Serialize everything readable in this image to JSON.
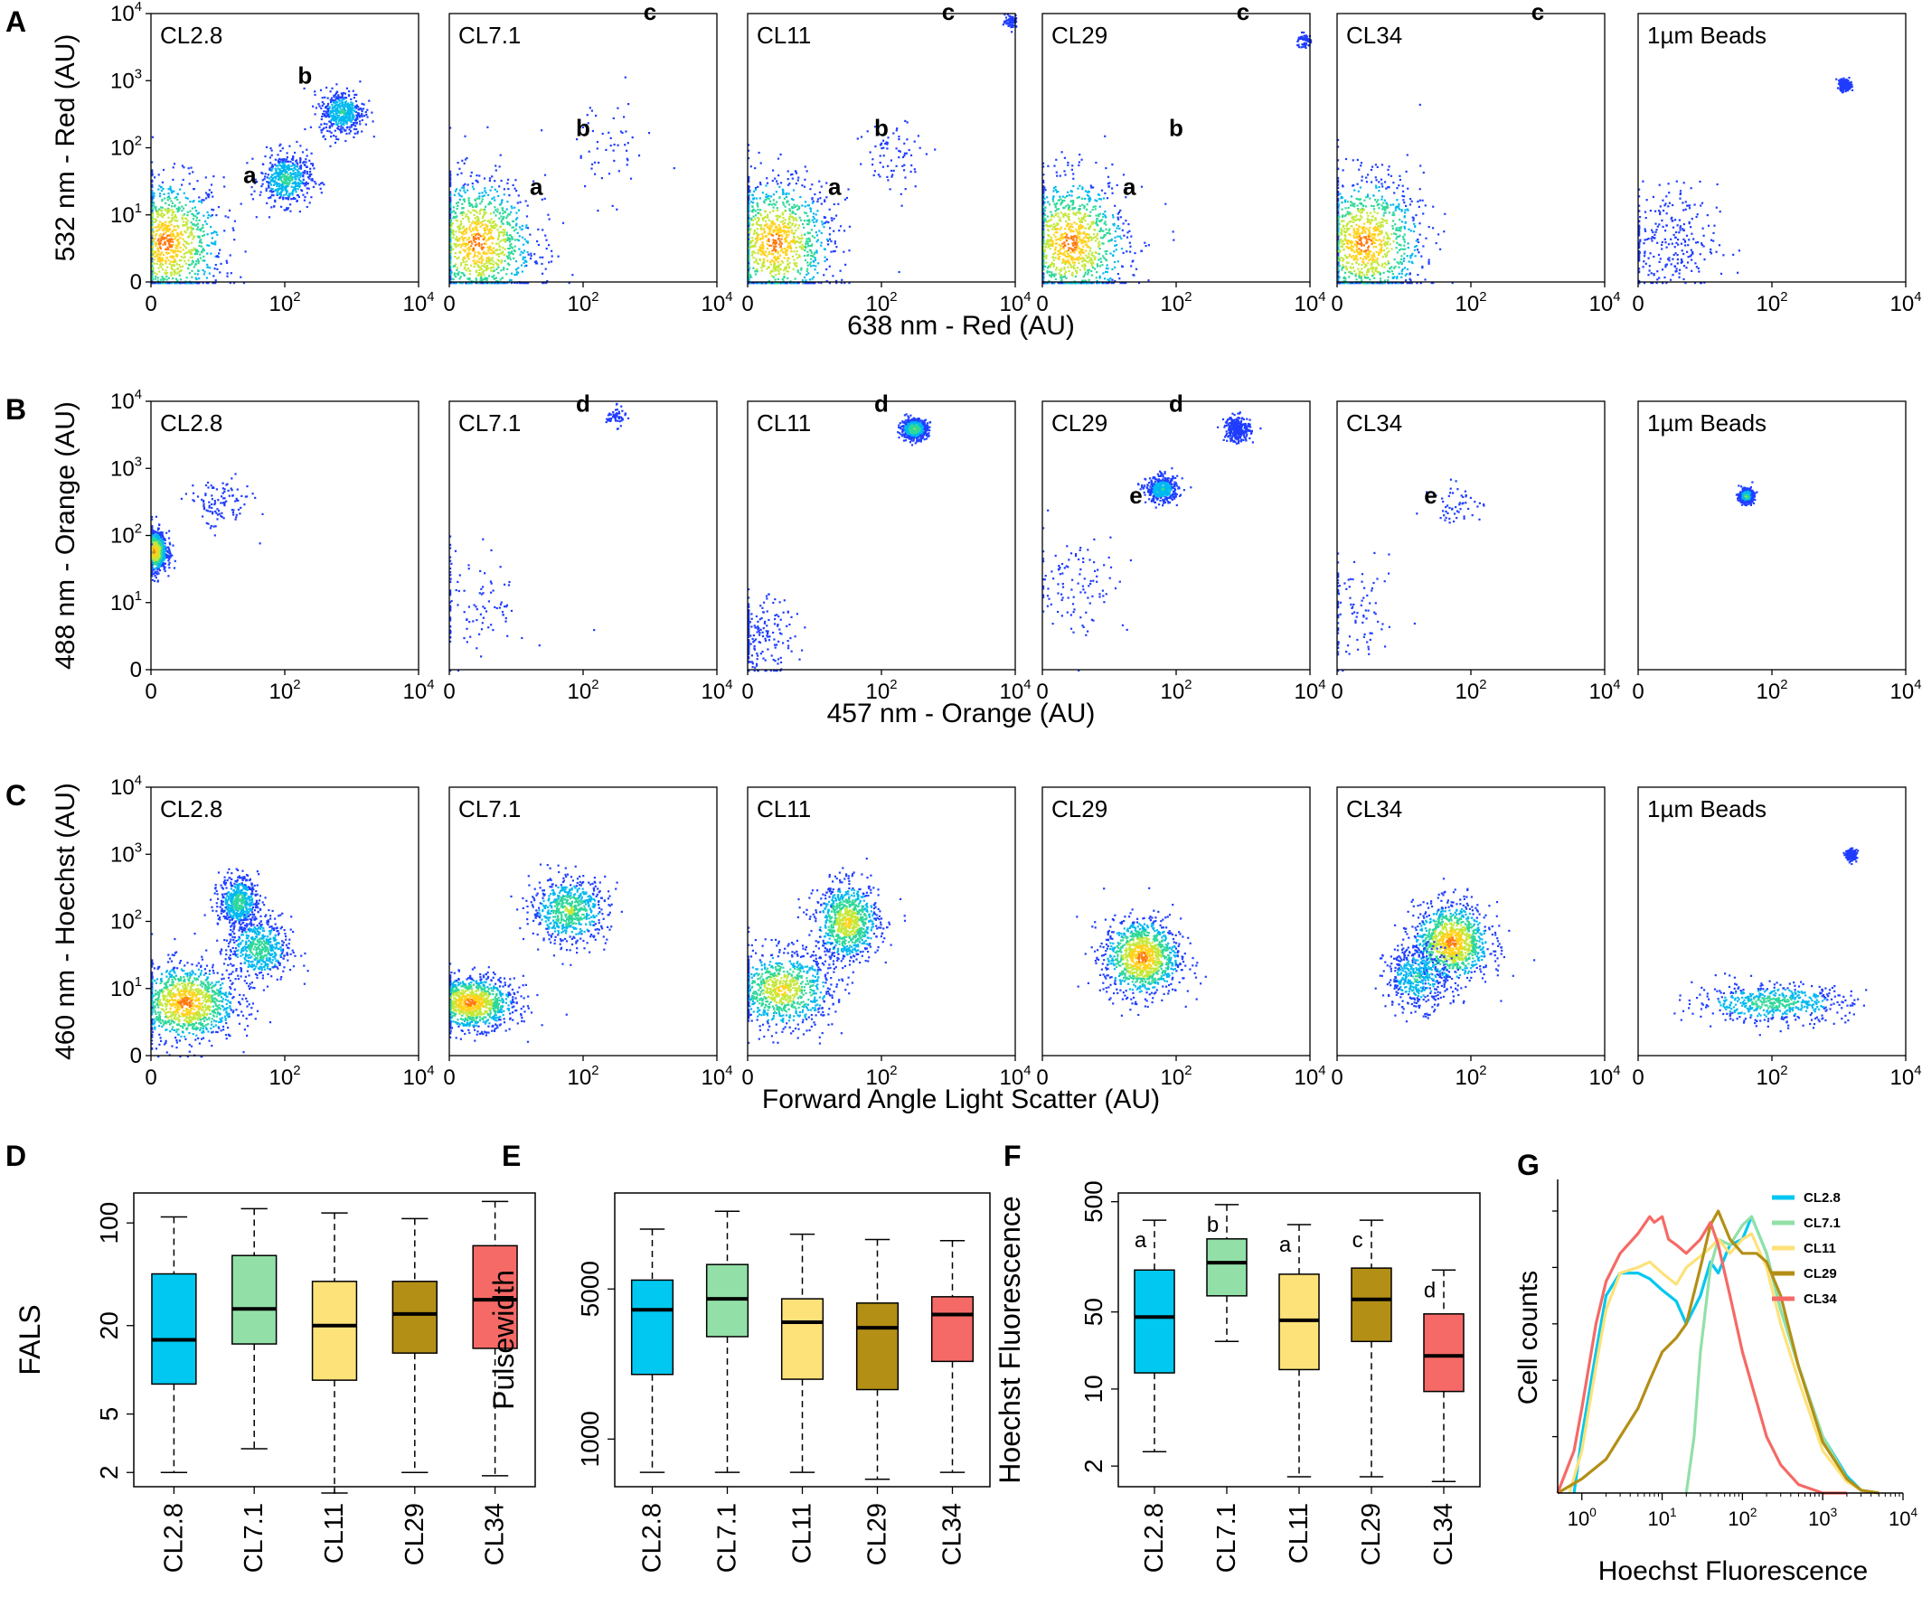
{
  "colors": {
    "CL2.8": "#00c8f0",
    "CL7.1": "#92e0a8",
    "CL11": "#fde27a",
    "CL29": "#b38f16",
    "CL34": "#f56a66",
    "dot": "#1f3cff"
  },
  "chart_data": [
    {
      "id": "A",
      "type": "scatter",
      "panel_letter": "A",
      "xlabel": "638 nm - Red (AU)",
      "ylabel": "532 nm - Red (AU)",
      "scale": "log (biexponential)",
      "xlim": [
        0,
        10000
      ],
      "ylim": [
        0,
        10000
      ],
      "x_ticks": [
        "0",
        "10^2",
        "10^4"
      ],
      "y_ticks": [
        "0",
        "10^1",
        "10^2",
        "10^3",
        "10^4"
      ],
      "subplots": [
        {
          "label": "CL2.8",
          "population_labels": [
            {
              "text": "a",
              "x": 30,
              "y": 30
            },
            {
              "text": "b",
              "x": 200,
              "y": 900
            }
          ],
          "clusters": [
            {
              "x": 2,
              "y": 6,
              "sx": 0.9,
              "sy": 1.0,
              "weight": 1.0
            },
            {
              "x": 100,
              "y": 35,
              "sx": 0.4,
              "sy": 0.4,
              "weight": 0.45
            },
            {
              "x": 700,
              "y": 350,
              "sx": 0.35,
              "sy": 0.35,
              "weight": 0.4
            }
          ]
        },
        {
          "label": "CL7.1",
          "population_labels": [
            {
              "text": "a",
              "x": 20,
              "y": 20
            },
            {
              "text": "b",
              "x": 100,
              "y": 150
            },
            {
              "text": "c",
              "x": 1000,
              "y": 8000
            }
          ],
          "clusters": [
            {
              "x": 4,
              "y": 6,
              "sx": 0.9,
              "sy": 1.0,
              "weight": 1.0
            },
            {
              "x": 200,
              "y": 100,
              "sx": 0.8,
              "sy": 0.8,
              "weight": 0.05
            }
          ]
        },
        {
          "label": "CL11",
          "population_labels": [
            {
              "text": "a",
              "x": 20,
              "y": 20
            },
            {
              "text": "b",
              "x": 100,
              "y": 150
            },
            {
              "text": "c",
              "x": 1000,
              "y": 8000
            }
          ],
          "clusters": [
            {
              "x": 4,
              "y": 6,
              "sx": 0.9,
              "sy": 1.0,
              "weight": 1.0
            },
            {
              "x": 150,
              "y": 80,
              "sx": 0.6,
              "sy": 0.6,
              "weight": 0.07
            },
            {
              "x": 8500,
              "y": 8000,
              "sx": 0.1,
              "sy": 0.1,
              "weight": 0.06
            }
          ]
        },
        {
          "label": "CL29",
          "population_labels": [
            {
              "text": "a",
              "x": 20,
              "y": 20
            },
            {
              "text": "b",
              "x": 100,
              "y": 150
            },
            {
              "text": "c",
              "x": 1000,
              "y": 8000
            }
          ],
          "clusters": [
            {
              "x": 4,
              "y": 6,
              "sx": 0.9,
              "sy": 1.0,
              "weight": 1.0
            },
            {
              "x": 8000,
              "y": 4000,
              "sx": 0.12,
              "sy": 0.12,
              "weight": 0.05
            }
          ]
        },
        {
          "label": "CL34",
          "population_labels": [
            {
              "text": "c",
              "x": 1000,
              "y": 8000
            }
          ],
          "clusters": [
            {
              "x": 4,
              "y": 6,
              "sx": 0.9,
              "sy": 1.0,
              "weight": 1.0
            }
          ]
        },
        {
          "label": "1µm Beads",
          "population_labels": [],
          "clusters": [
            {
              "x": 4,
              "y": 6,
              "sx": 0.8,
              "sy": 0.9,
              "weight": 0.25
            },
            {
              "x": 1200,
              "y": 900,
              "sx": 0.08,
              "sy": 0.08,
              "weight": 0.3
            }
          ]
        }
      ]
    },
    {
      "id": "B",
      "type": "scatter",
      "panel_letter": "B",
      "xlabel": "457 nm - Orange (AU)",
      "ylabel": "488 nm - Orange (AU)",
      "scale": "log (biexponential)",
      "xlim": [
        0,
        10000
      ],
      "ylim": [
        0,
        10000
      ],
      "x_ticks": [
        "0",
        "10^2",
        "10^4"
      ],
      "y_ticks": [
        "0",
        "10^1",
        "10^2",
        "10^3",
        "10^4"
      ],
      "subplots": [
        {
          "label": "CL2.8",
          "population_labels": [],
          "clusters": [
            {
              "x": 0.3,
              "y": 60,
              "sx": 0.2,
              "sy": 0.3,
              "weight": 1.0
            },
            {
              "x": 10,
              "y": 300,
              "sx": 0.5,
              "sy": 0.4,
              "weight": 0.1
            }
          ]
        },
        {
          "label": "CL7.1",
          "population_labels": [
            {
              "text": "d",
              "x": 100,
              "y": 7000
            }
          ],
          "clusters": [
            {
              "x": 3,
              "y": 10,
              "sx": 0.9,
              "sy": 0.9,
              "weight": 0.1
            },
            {
              "x": 300,
              "y": 6000,
              "sx": 0.15,
              "sy": 0.15,
              "weight": 0.05
            }
          ]
        },
        {
          "label": "CL11",
          "population_labels": [
            {
              "text": "d",
              "x": 100,
              "y": 7000
            }
          ],
          "clusters": [
            {
              "x": 1,
              "y": 5,
              "sx": 0.6,
              "sy": 0.6,
              "weight": 0.2
            },
            {
              "x": 300,
              "y": 4000,
              "sx": 0.2,
              "sy": 0.15,
              "weight": 0.6
            }
          ]
        },
        {
          "label": "CL29",
          "population_labels": [
            {
              "text": "d",
              "x": 100,
              "y": 7000
            },
            {
              "text": "e",
              "x": 25,
              "y": 300
            }
          ],
          "clusters": [
            {
              "x": 5,
              "y": 20,
              "sx": 0.8,
              "sy": 0.8,
              "weight": 0.1
            },
            {
              "x": 60,
              "y": 500,
              "sx": 0.25,
              "sy": 0.2,
              "weight": 0.4
            },
            {
              "x": 800,
              "y": 4000,
              "sx": 0.2,
              "sy": 0.2,
              "weight": 0.25
            }
          ]
        },
        {
          "label": "CL34",
          "population_labels": [
            {
              "text": "e",
              "x": 25,
              "y": 300
            }
          ],
          "clusters": [
            {
              "x": 2,
              "y": 8,
              "sx": 0.8,
              "sy": 0.8,
              "weight": 0.1
            },
            {
              "x": 60,
              "y": 300,
              "sx": 0.4,
              "sy": 0.3,
              "weight": 0.05
            }
          ]
        },
        {
          "label": "1µm Beads",
          "population_labels": [],
          "clusters": [
            {
              "x": 40,
              "y": 400,
              "sx": 0.1,
              "sy": 0.1,
              "weight": 0.6
            }
          ]
        }
      ]
    },
    {
      "id": "C",
      "type": "scatter",
      "panel_letter": "C",
      "xlabel": "Forward Angle Light Scatter  (AU)",
      "ylabel": "460 nm - Hoechst (AU)",
      "scale": "log (biexponential)",
      "xlim": [
        0,
        10000
      ],
      "ylim": [
        0,
        10000
      ],
      "x_ticks": [
        "0",
        "10^2",
        "10^4"
      ],
      "y_ticks": [
        "0",
        "10^1",
        "10^2",
        "10^3",
        "10^4"
      ],
      "subplots": [
        {
          "label": "CL2.8",
          "clusters": [
            {
              "x": 20,
              "y": 200,
              "sx": 0.3,
              "sy": 0.4,
              "weight": 0.5
            },
            {
              "x": 40,
              "y": 40,
              "sx": 0.5,
              "sy": 0.5,
              "weight": 0.5
            },
            {
              "x": 5,
              "y": 8,
              "sx": 0.8,
              "sy": 0.6,
              "weight": 1.0
            }
          ]
        },
        {
          "label": "CL7.1",
          "clusters": [
            {
              "x": 3,
              "y": 8,
              "sx": 0.7,
              "sy": 0.4,
              "weight": 1.0
            },
            {
              "x": 60,
              "y": 150,
              "sx": 0.6,
              "sy": 0.5,
              "weight": 0.6
            }
          ]
        },
        {
          "label": "CL11",
          "clusters": [
            {
              "x": 30,
              "y": 100,
              "sx": 0.5,
              "sy": 0.6,
              "weight": 0.8
            },
            {
              "x": 5,
              "y": 10,
              "sx": 0.8,
              "sy": 0.6,
              "weight": 0.8
            }
          ]
        },
        {
          "label": "CL29",
          "clusters": [
            {
              "x": 30,
              "y": 30,
              "sx": 0.6,
              "sy": 0.6,
              "weight": 1.0
            }
          ]
        },
        {
          "label": "CL34",
          "clusters": [
            {
              "x": 50,
              "y": 50,
              "sx": 0.6,
              "sy": 0.6,
              "weight": 1.0
            },
            {
              "x": 15,
              "y": 15,
              "sx": 0.5,
              "sy": 0.5,
              "weight": 0.4
            }
          ]
        },
        {
          "label": "1µm Beads",
          "clusters": [
            {
              "x": 100,
              "y": 8,
              "sx": 1.2,
              "sy": 0.3,
              "weight": 0.5
            },
            {
              "x": 1500,
              "y": 1000,
              "sx": 0.08,
              "sy": 0.08,
              "weight": 0.2
            }
          ]
        }
      ]
    },
    {
      "id": "D",
      "type": "box",
      "panel_letter": "D",
      "ylabel": "FALS",
      "scale": "log",
      "ylim": [
        1.6,
        160
      ],
      "y_ticks": [
        2,
        5,
        20,
        100
      ],
      "categories": [
        "CL2.8",
        "CL7.1",
        "CL11",
        "CL29",
        "CL34"
      ],
      "boxes": [
        {
          "name": "CL2.8",
          "min": 2.0,
          "q1": 8.0,
          "median": 16.0,
          "q3": 45.0,
          "max": 110.0
        },
        {
          "name": "CL7.1",
          "min": 2.9,
          "q1": 15.0,
          "median": 26.0,
          "q3": 60.0,
          "max": 125.0
        },
        {
          "name": "CL11",
          "min": 1.45,
          "q1": 8.5,
          "median": 20.0,
          "q3": 40.0,
          "max": 117.0
        },
        {
          "name": "CL29",
          "min": 2.0,
          "q1": 13.0,
          "median": 24.0,
          "q3": 40.0,
          "max": 107.0
        },
        {
          "name": "CL34",
          "min": 1.9,
          "q1": 14.0,
          "median": 30.0,
          "q3": 70.0,
          "max": 140.0
        }
      ]
    },
    {
      "id": "E",
      "type": "box",
      "panel_letter": "E",
      "ylabel": "Pulsewidth",
      "scale": "log",
      "ylim": [
        600,
        14000
      ],
      "y_ticks": [
        1000,
        5000
      ],
      "categories": [
        "CL2.8",
        "CL7.1",
        "CL11",
        "CL29",
        "CL34"
      ],
      "boxes": [
        {
          "name": "CL2.8",
          "min": 700,
          "q1": 2000,
          "median": 4000,
          "q3": 5500,
          "max": 9500
        },
        {
          "name": "CL7.1",
          "min": 700,
          "q1": 3000,
          "median": 4500,
          "q3": 6500,
          "max": 11500
        },
        {
          "name": "CL11",
          "min": 700,
          "q1": 1900,
          "median": 3500,
          "q3": 4500,
          "max": 9000
        },
        {
          "name": "CL29",
          "min": 650,
          "q1": 1700,
          "median": 3300,
          "q3": 4300,
          "max": 8500
        },
        {
          "name": "CL34",
          "min": 700,
          "q1": 2300,
          "median": 3800,
          "q3": 4600,
          "max": 8400
        }
      ]
    },
    {
      "id": "F",
      "type": "box",
      "panel_letter": "F",
      "ylabel": "Hoechst Fluorescence",
      "scale": "log",
      "ylim": [
        1.3,
        600
      ],
      "y_ticks": [
        2,
        10,
        50,
        500
      ],
      "categories": [
        "CL2.8",
        "CL7.1",
        "CL11",
        "CL29",
        "CL34"
      ],
      "letters": [
        "a",
        "b",
        "a",
        "c",
        "d"
      ],
      "boxes": [
        {
          "name": "CL2.8",
          "min": 2.7,
          "q1": 14.0,
          "median": 45.0,
          "q3": 120.0,
          "max": 340.0
        },
        {
          "name": "CL7.1",
          "min": 27.0,
          "q1": 70.0,
          "median": 140.0,
          "q3": 230.0,
          "max": 470.0
        },
        {
          "name": "CL11",
          "min": 1.6,
          "q1": 15.0,
          "median": 42.0,
          "q3": 110.0,
          "max": 310.0
        },
        {
          "name": "CL29",
          "min": 1.6,
          "q1": 27.0,
          "median": 65.0,
          "q3": 125.0,
          "max": 340.0
        },
        {
          "name": "CL34",
          "min": 1.45,
          "q1": 9.5,
          "median": 20.0,
          "q3": 48.0,
          "max": 120.0
        }
      ]
    },
    {
      "id": "G",
      "type": "line",
      "panel_letter": "G",
      "title": "",
      "xlabel": "Hoechst Fluorescence",
      "ylabel": "Cell counts",
      "scale": "log",
      "xlim": [
        0.5,
        10000
      ],
      "ylim": [
        0,
        1
      ],
      "x_ticks": [
        "10^0",
        "10^1",
        "10^2",
        "10^3",
        "10^4"
      ],
      "legend": "top-right",
      "series": [
        {
          "name": "CL2.8",
          "x": [
            0.8,
            1,
            1.5,
            2,
            3,
            5,
            7,
            10,
            15,
            20,
            30,
            40,
            50,
            70,
            100,
            130,
            200,
            300,
            500,
            1000,
            2000,
            3000,
            5000
          ],
          "y": [
            0.0,
            0.2,
            0.5,
            0.7,
            0.78,
            0.78,
            0.76,
            0.72,
            0.68,
            0.6,
            0.7,
            0.82,
            0.78,
            0.88,
            0.9,
            0.98,
            0.85,
            0.65,
            0.45,
            0.2,
            0.06,
            0.01,
            0.0
          ]
        },
        {
          "name": "CL7.1",
          "x": [
            20,
            25,
            30,
            40,
            50,
            70,
            100,
            130,
            200,
            300,
            500,
            1000,
            2000,
            3000,
            5000
          ],
          "y": [
            0.0,
            0.2,
            0.5,
            0.8,
            0.9,
            0.88,
            0.95,
            0.98,
            0.85,
            0.65,
            0.45,
            0.2,
            0.05,
            0.01,
            0.0
          ]
        },
        {
          "name": "CL11",
          "x": [
            0.7,
            1,
            1.5,
            2,
            3,
            5,
            7,
            10,
            15,
            20,
            30,
            40,
            50,
            70,
            100,
            130,
            200,
            300,
            500,
            1000,
            2000,
            3000,
            5000
          ],
          "y": [
            0.0,
            0.15,
            0.45,
            0.65,
            0.78,
            0.8,
            0.82,
            0.78,
            0.74,
            0.8,
            0.84,
            0.87,
            0.9,
            0.85,
            0.9,
            0.92,
            0.8,
            0.6,
            0.4,
            0.15,
            0.04,
            0.01,
            0.0
          ]
        },
        {
          "name": "CL29",
          "x": [
            0.5,
            1,
            2,
            3,
            5,
            7,
            10,
            15,
            20,
            30,
            40,
            50,
            70,
            100,
            150,
            200,
            300,
            500,
            1000,
            2000,
            3000,
            5000
          ],
          "y": [
            0.0,
            0.05,
            0.12,
            0.2,
            0.3,
            0.4,
            0.5,
            0.55,
            0.6,
            0.8,
            0.95,
            1.0,
            0.9,
            0.85,
            0.85,
            0.82,
            0.7,
            0.45,
            0.18,
            0.05,
            0.01,
            0.0
          ]
        },
        {
          "name": "CL34",
          "x": [
            0.5,
            0.8,
            1,
            1.5,
            2,
            3,
            5,
            7,
            8,
            10,
            12,
            15,
            20,
            30,
            40,
            50,
            70,
            100,
            200,
            300,
            500,
            1000,
            2000
          ],
          "y": [
            0.0,
            0.15,
            0.3,
            0.6,
            0.75,
            0.85,
            0.92,
            0.98,
            0.96,
            0.98,
            0.9,
            0.88,
            0.85,
            0.9,
            0.96,
            0.88,
            0.7,
            0.5,
            0.2,
            0.1,
            0.03,
            0.0,
            0.0
          ]
        }
      ]
    }
  ]
}
